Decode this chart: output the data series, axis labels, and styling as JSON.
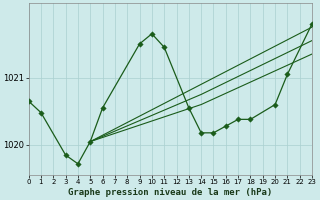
{
  "title": "Graphe pression niveau de la mer (hPa)",
  "background_color": "#ceeaea",
  "grid_color": "#aad0d0",
  "line_color": "#1a5c1a",
  "xlim": [
    0,
    23
  ],
  "ylim": [
    1019.55,
    1022.1
  ],
  "yticks": [
    1020,
    1021
  ],
  "xticks": [
    0,
    1,
    2,
    3,
    4,
    5,
    6,
    7,
    8,
    9,
    10,
    11,
    12,
    13,
    14,
    15,
    16,
    17,
    18,
    19,
    20,
    21,
    22,
    23
  ],
  "main_line": {
    "x": [
      0,
      1,
      3,
      4,
      5,
      6,
      9,
      10,
      11,
      13,
      14,
      15,
      16,
      17,
      18,
      20,
      21,
      23
    ],
    "y": [
      1020.65,
      1020.48,
      1019.85,
      1019.72,
      1020.05,
      1020.55,
      1021.5,
      1021.65,
      1021.45,
      1020.55,
      1020.18,
      1020.18,
      1020.28,
      1020.38,
      1020.38,
      1020.6,
      1021.05,
      1021.8
    ]
  },
  "second_line": {
    "x": [
      0,
      1
    ],
    "y": [
      1020.65,
      1020.48
    ]
  },
  "fan_lines": [
    {
      "x": [
        5,
        14,
        23
      ],
      "y": [
        1020.05,
        1020.9,
        1021.75
      ]
    },
    {
      "x": [
        5,
        14,
        23
      ],
      "y": [
        1020.05,
        1020.75,
        1021.55
      ]
    },
    {
      "x": [
        5,
        14,
        23
      ],
      "y": [
        1020.05,
        1020.6,
        1021.35
      ]
    }
  ]
}
